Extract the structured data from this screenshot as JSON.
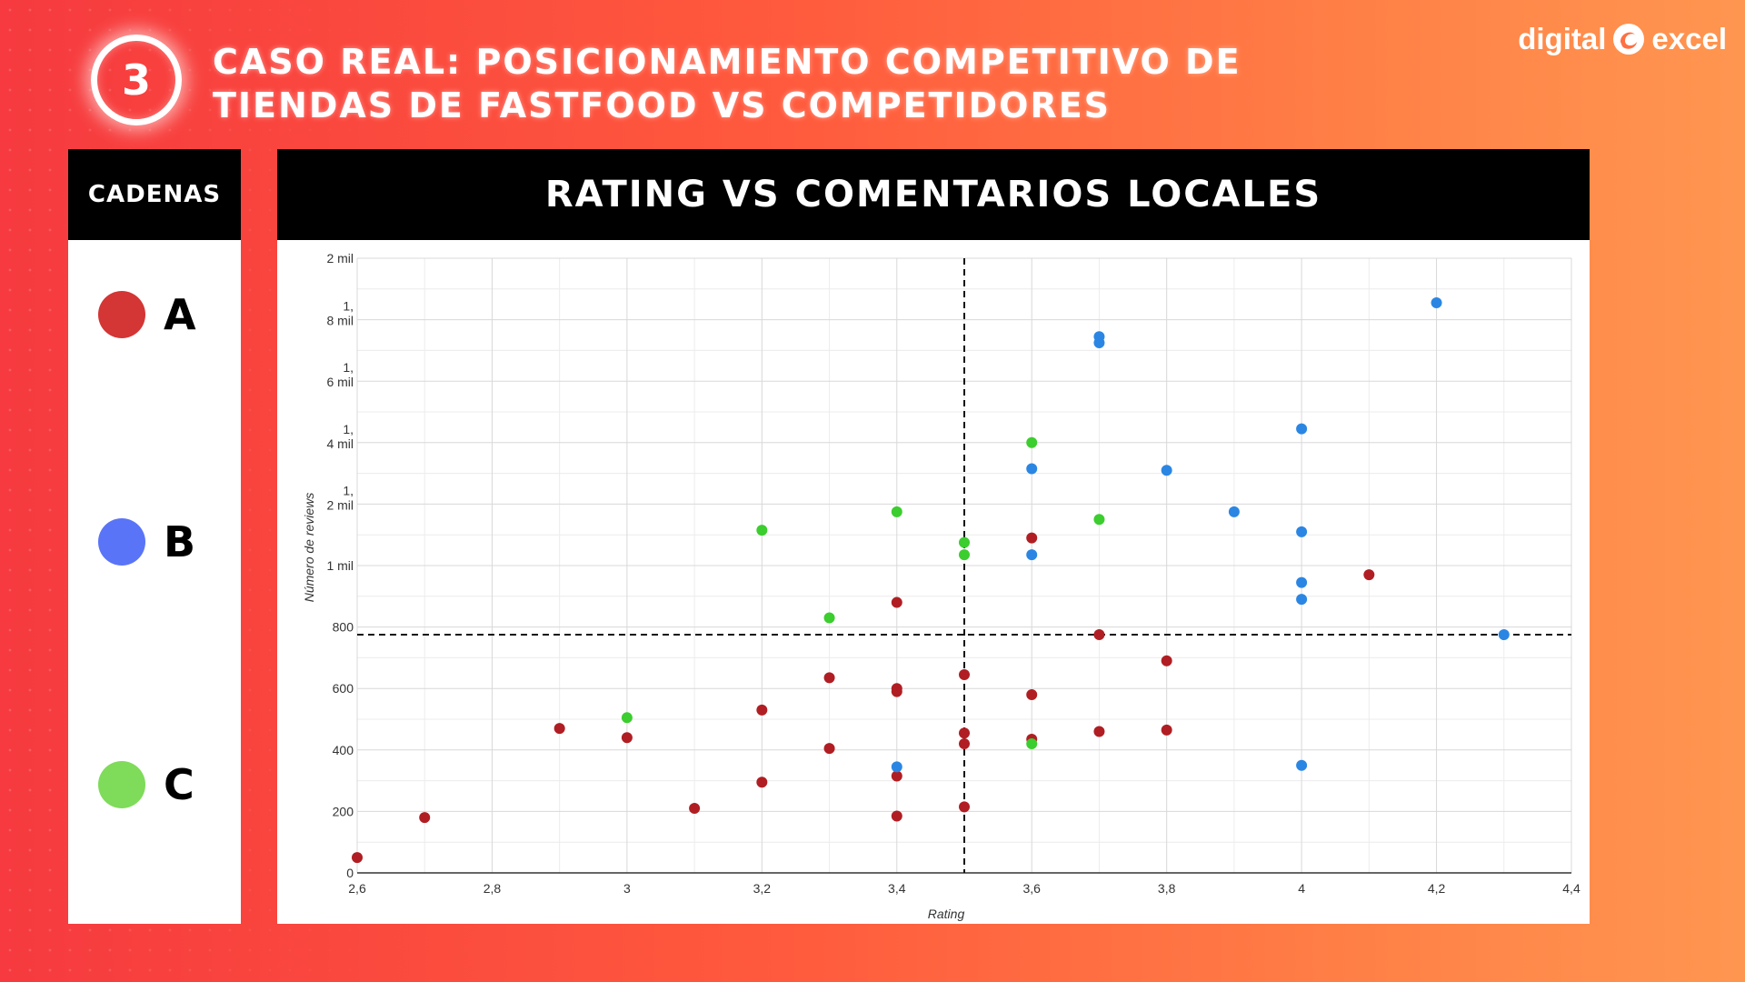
{
  "header": {
    "step_number": "3",
    "title_line1": "CASO REAL: POSICIONAMIENTO COMPETITIVO DE",
    "title_line2": "TIENDAS DE FASTFOOD VS COMPETIDORES"
  },
  "logo": {
    "text_left": "digital",
    "text_right": "excel",
    "icon": "swirl-logo-icon"
  },
  "legend": {
    "title": "CADENAS",
    "items": [
      {
        "label": "A",
        "color": "#d43535"
      },
      {
        "label": "B",
        "color": "#5a74f7"
      },
      {
        "label": "C",
        "color": "#7fdb5a"
      }
    ]
  },
  "chart_panel": {
    "title": "RATING VS COMENTARIOS LOCALES"
  },
  "chart_data": {
    "type": "scatter",
    "title": "RATING VS COMENTARIOS LOCALES",
    "xlabel": "Rating",
    "ylabel": "Número de reviews",
    "xlim": [
      2.6,
      4.4
    ],
    "ylim": [
      0,
      2000
    ],
    "x_ticks": [
      2.6,
      2.8,
      3.0,
      3.2,
      3.4,
      3.6,
      3.8,
      4.0,
      4.2,
      4.4
    ],
    "x_tick_labels": [
      "2,6",
      "2,8",
      "3",
      "3,2",
      "3,4",
      "3,6",
      "3,8",
      "4",
      "4,2",
      "4,4"
    ],
    "y_ticks": [
      0,
      200,
      400,
      600,
      800,
      1000,
      1200,
      1400,
      1600,
      1800,
      2000
    ],
    "y_tick_labels": [
      "0",
      "200",
      "400",
      "600",
      "800",
      "1 mil",
      "1,\n2 mil",
      "1,\n4 mil",
      "1,\n6 mil",
      "1,\n8 mil",
      "2 mil"
    ],
    "grid": true,
    "reference_lines": {
      "x": 3.5,
      "y": 775
    },
    "series": [
      {
        "name": "A",
        "color": "#b01e23",
        "points": [
          [
            2.6,
            50
          ],
          [
            2.7,
            180
          ],
          [
            2.9,
            470
          ],
          [
            3.0,
            440
          ],
          [
            3.1,
            210
          ],
          [
            3.2,
            530
          ],
          [
            3.2,
            295
          ],
          [
            3.3,
            635
          ],
          [
            3.3,
            405
          ],
          [
            3.4,
            880
          ],
          [
            3.4,
            600
          ],
          [
            3.4,
            590
          ],
          [
            3.4,
            315
          ],
          [
            3.4,
            185
          ],
          [
            3.5,
            645
          ],
          [
            3.5,
            455
          ],
          [
            3.5,
            420
          ],
          [
            3.5,
            215
          ],
          [
            3.6,
            1090
          ],
          [
            3.6,
            580
          ],
          [
            3.6,
            435
          ],
          [
            3.7,
            775
          ],
          [
            3.7,
            460
          ],
          [
            3.8,
            690
          ],
          [
            3.8,
            465
          ],
          [
            4.1,
            970
          ]
        ]
      },
      {
        "name": "B",
        "color": "#2b86e3",
        "points": [
          [
            3.4,
            345
          ],
          [
            3.6,
            1035
          ],
          [
            3.6,
            1315
          ],
          [
            3.7,
            1745
          ],
          [
            3.7,
            1725
          ],
          [
            3.8,
            1310
          ],
          [
            3.9,
            1175
          ],
          [
            4.0,
            1445
          ],
          [
            4.0,
            1110
          ],
          [
            4.0,
            945
          ],
          [
            4.0,
            890
          ],
          [
            4.0,
            350
          ],
          [
            4.2,
            1855
          ],
          [
            4.3,
            775
          ]
        ]
      },
      {
        "name": "C",
        "color": "#3ccd2f",
        "points": [
          [
            3.0,
            505
          ],
          [
            3.2,
            1115
          ],
          [
            3.3,
            830
          ],
          [
            3.4,
            1175
          ],
          [
            3.5,
            1075
          ],
          [
            3.5,
            1035
          ],
          [
            3.6,
            1400
          ],
          [
            3.6,
            420
          ],
          [
            3.7,
            1150
          ]
        ]
      }
    ]
  }
}
